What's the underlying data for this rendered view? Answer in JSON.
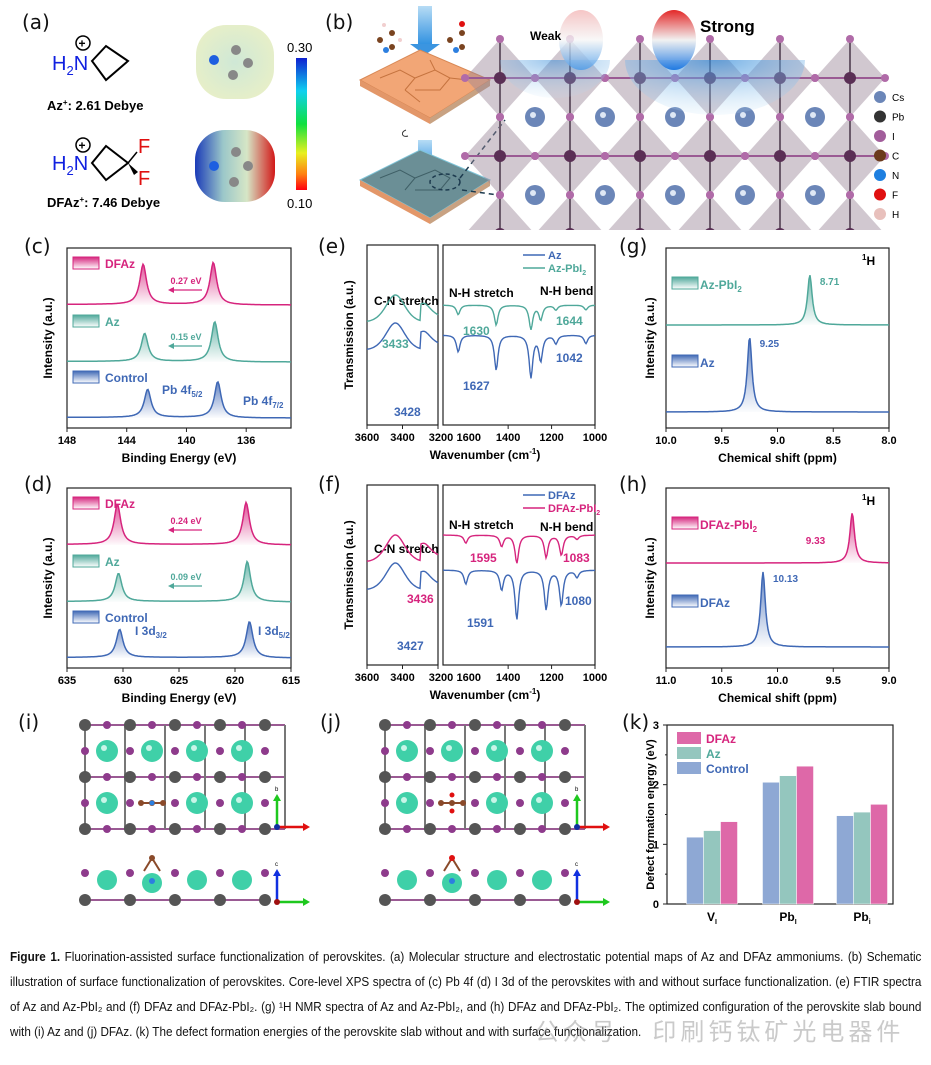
{
  "panel_labels": {
    "a": "(a)",
    "b": "(b)",
    "c": "(c)",
    "d": "(d)",
    "e": "(e)",
    "f": "(f)",
    "g": "(g)",
    "h": "(h)",
    "i": "(i)",
    "j": "(j)",
    "k": "(k)"
  },
  "panel_a": {
    "az_label": "Az",
    "az_sup": "+",
    "az_dipole": ": 2.61 Debye",
    "dfaz_label": "DFAz",
    "dfaz_sup": "+",
    "dfaz_dipole": ": 7.46 Debye",
    "h2n": "H",
    "h2n_sub": "2",
    "n": "N",
    "f": "F",
    "colorbar_max": "0.30",
    "colorbar_min": "0.10"
  },
  "panel_b": {
    "weak_label": "Weak",
    "strong_label": "Strong",
    "legend": [
      {
        "name": "Cs",
        "color": "#6b86b8"
      },
      {
        "name": "Pb",
        "color": "#333333"
      },
      {
        "name": "I",
        "color": "#a25d9b"
      },
      {
        "name": "C",
        "color": "#6b3a1c"
      },
      {
        "name": "N",
        "color": "#1e7fe0"
      },
      {
        "name": "F",
        "color": "#e01010"
      },
      {
        "name": "H",
        "color": "#e8c0bc"
      }
    ]
  },
  "colors": {
    "dfaz": "#d6247d",
    "az": "#4fa89a",
    "control": "#3f68b5",
    "dfaz_bar": "#de68a8",
    "az_bar": "#94c6be",
    "control_bar": "#8ea8d4"
  },
  "chart_data": [
    {
      "id": "c",
      "type": "line",
      "title": "",
      "xlabel": "Binding Energy (eV)",
      "ylabel": "Intensity (a.u.)",
      "xlim": [
        148,
        133
      ],
      "xticks": [
        148,
        144,
        140,
        136
      ],
      "series": [
        {
          "name": "DFAz",
          "peaks": [
            142.9,
            138.2
          ],
          "shift_label": "0.27 eV"
        },
        {
          "name": "Az",
          "peaks": [
            142.8,
            138.1
          ],
          "shift_label": "0.15 eV"
        },
        {
          "name": "Control",
          "peaks": [
            142.6,
            137.9
          ]
        }
      ],
      "annotations": [
        "Pb 4f5/2",
        "Pb 4f7/2"
      ]
    },
    {
      "id": "d",
      "type": "line",
      "title": "",
      "xlabel": "Binding Energy (eV)",
      "ylabel": "Intensity (a.u.)",
      "xlim": [
        635,
        615
      ],
      "xticks": [
        635,
        630,
        625,
        620,
        615
      ],
      "series": [
        {
          "name": "DFAz",
          "peaks": [
            630.5,
            619.0
          ],
          "shift_label": "0.24 eV"
        },
        {
          "name": "Az",
          "peaks": [
            630.4,
            618.9
          ],
          "shift_label": "0.09 eV"
        },
        {
          "name": "Control",
          "peaks": [
            630.3,
            618.7
          ]
        }
      ],
      "annotations": [
        "I 3d3/2",
        "I 3d5/2"
      ]
    },
    {
      "id": "e",
      "type": "line",
      "title": "",
      "xlabel": "Wavenumber (cm-1)",
      "ylabel": "Transmission (a.u.)",
      "left_xlim": [
        3600,
        3200
      ],
      "left_xticks": [
        3600,
        3400,
        3200
      ],
      "right_xlim": [
        1700,
        1000
      ],
      "right_xticks": [
        1600,
        1400,
        1200,
        1000
      ],
      "series": [
        {
          "name": "Az"
        },
        {
          "name": "Az-PbI2"
        }
      ],
      "annotations": {
        "region1": "C-N stretch",
        "region2": "N-H stretch",
        "region3": "N-H bend",
        "az_pbi2_cn": "3433",
        "az_cn": "3428",
        "az_pbi2_nh": "1630",
        "az_nh": "1627",
        "az_pbi2_bend": "1644",
        "az_bend": "1042"
      }
    },
    {
      "id": "f",
      "type": "line",
      "title": "",
      "xlabel": "Wavenumber (cm-1)",
      "ylabel": "Transmission (a.u.)",
      "left_xlim": [
        3600,
        3200
      ],
      "left_xticks": [
        3600,
        3400,
        3200
      ],
      "right_xlim": [
        1700,
        1000
      ],
      "right_xticks": [
        1600,
        1400,
        1200,
        1000
      ],
      "series": [
        {
          "name": "DFAz"
        },
        {
          "name": "DFAz-PbI2"
        }
      ],
      "annotations": {
        "region1": "C-N stretch",
        "region2": "N-H stretch",
        "region3": "N-H bend",
        "dfaz_pbi2_cn": "3436",
        "dfaz_cn": "3427",
        "dfaz_pbi2_nh": "1595",
        "dfaz_nh": "1591",
        "dfaz_pbi2_bend": "1083",
        "dfaz_bend": "1080"
      }
    },
    {
      "id": "g",
      "type": "line",
      "title": "1H",
      "xlabel": "Chemical shift (ppm)",
      "ylabel": "Intensity (a.u.)",
      "xlim": [
        10.0,
        8.0
      ],
      "xticks": [
        10.0,
        9.5,
        9.0,
        8.5,
        8.0
      ],
      "series": [
        {
          "name": "Az-PbI2",
          "peak": 8.71,
          "label": "8.71"
        },
        {
          "name": "Az",
          "peak": 9.25,
          "label": "9.25"
        }
      ]
    },
    {
      "id": "h",
      "type": "line",
      "title": "1H",
      "xlabel": "Chemical shift (ppm)",
      "ylabel": "Intensity (a.u.)",
      "xlim": [
        11.0,
        9.0
      ],
      "xticks": [
        11.0,
        10.5,
        10.0,
        9.5,
        9.0
      ],
      "series": [
        {
          "name": "DFAz-PbI2",
          "peak": 9.33,
          "label": "9.33"
        },
        {
          "name": "DFAz",
          "peak": 10.13,
          "label": "10.13"
        }
      ]
    },
    {
      "id": "k",
      "type": "bar",
      "title": "",
      "xlabel": "",
      "ylabel": "Defect formation energy (eV)",
      "ylim": [
        0,
        3
      ],
      "yticks": [
        0,
        1,
        2,
        3
      ],
      "categories": [
        "VI",
        "PbI",
        "Pbi"
      ],
      "category_main": [
        "V",
        "Pb",
        "Pb"
      ],
      "category_sub": [
        "I",
        "I",
        "i"
      ],
      "series": [
        {
          "name": "Control",
          "values": [
            1.12,
            2.04,
            1.48
          ]
        },
        {
          "name": "Az",
          "values": [
            1.23,
            2.15,
            1.54
          ]
        },
        {
          "name": "DFAz",
          "values": [
            1.38,
            2.31,
            1.67
          ]
        }
      ],
      "legend": "top-left"
    }
  ],
  "panel_ij": {
    "axis_a": "a",
    "axis_b": "b",
    "axis_c": "c"
  },
  "caption": {
    "fig_label": "Figure 1.",
    "text": " Fluorination-assisted surface functionalization of perovskites. (a) Molecular structure and electrostatic potential maps of Az and DFAz ammoniums. (b) Schematic illustration of surface functionalization of perovskites. Core-level XPS spectra of (c) Pb 4f (d) I 3d of the perovskites with and without surface functionalization. (e) FTIR spectra of Az and Az-PbI₂ and (f) DFAz and DFAz-PbI₂. (g) ¹H NMR spectra of Az and Az-PbI₂, and (h) DFAz and DFAz-PbI₂. The optimized configuration of the perovskite slab bound with (i) Az and (j) DFAz. (k) The defect formation energies of the perovskite slab without and with surface functionalization."
  },
  "watermark": "公众号 · 印刷钙钛矿光电器件"
}
